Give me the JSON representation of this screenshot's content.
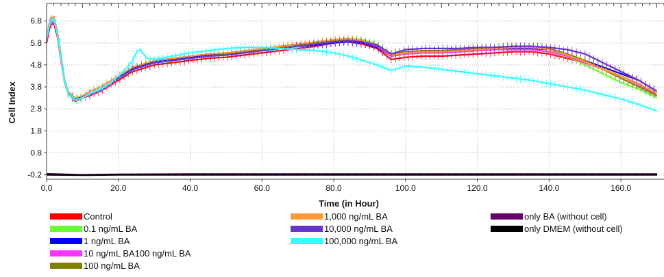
{
  "chart_data": {
    "type": "line",
    "xlabel": "Time  (in Hour)",
    "ylabel": "Cell Index",
    "xlim": [
      0,
      172
    ],
    "ylim": [
      -0.4,
      7.6
    ],
    "x_ticks": [
      0,
      20,
      40,
      60,
      80,
      100,
      120,
      140,
      160
    ],
    "x_tick_labels": [
      "0,0",
      "20.0",
      "40.0",
      "60.0",
      "80.0",
      "100.0",
      "120.0",
      "140.0",
      "160.0"
    ],
    "y_ticks": [
      -0.2,
      0.8,
      1.8,
      2.8,
      3.8,
      4.8,
      5.8,
      6.8
    ],
    "y_tick_labels": [
      "-0.2",
      "0.8",
      "1.8",
      "2.8",
      "3.8",
      "4.8",
      "5.8",
      "6.8"
    ],
    "grid": true,
    "error_bars": true,
    "legend_position": "bottom",
    "series": [
      {
        "name": "Control",
        "color": "#ff0000",
        "x": [
          0,
          1,
          2,
          3,
          4,
          5,
          6,
          8,
          10,
          12,
          15,
          18,
          20,
          24,
          26,
          28,
          30,
          35,
          40,
          45,
          50,
          55,
          60,
          65,
          70,
          75,
          80,
          84,
          88,
          92,
          96,
          100,
          105,
          110,
          115,
          120,
          125,
          130,
          135,
          140,
          145,
          150,
          155,
          160,
          165,
          170
        ],
        "y": [
          5.8,
          6.6,
          6.7,
          6.1,
          5.0,
          4.0,
          3.5,
          3.15,
          3.3,
          3.4,
          3.6,
          3.9,
          4.1,
          4.5,
          4.6,
          4.7,
          4.8,
          4.9,
          5.0,
          5.1,
          5.15,
          5.25,
          5.35,
          5.45,
          5.55,
          5.65,
          5.8,
          5.85,
          5.75,
          5.55,
          5.05,
          5.15,
          5.2,
          5.2,
          5.25,
          5.3,
          5.35,
          5.4,
          5.4,
          5.3,
          5.1,
          4.9,
          4.6,
          4.2,
          3.8,
          3.5
        ]
      },
      {
        "name": "0.1 ng/mL BA",
        "color": "#66ff33",
        "x": [
          0,
          1,
          2,
          3,
          4,
          5,
          6,
          8,
          10,
          12,
          15,
          18,
          20,
          24,
          26,
          28,
          30,
          35,
          40,
          45,
          50,
          55,
          60,
          65,
          70,
          75,
          80,
          84,
          88,
          92,
          96,
          100,
          105,
          110,
          115,
          120,
          125,
          130,
          135,
          140,
          145,
          150,
          155,
          160,
          165,
          170
        ],
        "y": [
          6.0,
          6.8,
          6.9,
          6.2,
          5.1,
          4.0,
          3.5,
          3.2,
          3.3,
          3.5,
          3.7,
          4.0,
          4.2,
          4.6,
          4.7,
          4.8,
          4.9,
          5.0,
          5.1,
          5.2,
          5.3,
          5.4,
          5.5,
          5.6,
          5.7,
          5.8,
          5.9,
          6.0,
          5.95,
          5.75,
          5.3,
          5.4,
          5.45,
          5.45,
          5.5,
          5.5,
          5.55,
          5.6,
          5.6,
          5.5,
          5.2,
          4.8,
          4.4,
          4.0,
          3.7,
          3.3
        ]
      },
      {
        "name": "1 ng/mL BA",
        "color": "#0000ff",
        "x": [
          0,
          1,
          2,
          3,
          4,
          5,
          6,
          8,
          10,
          12,
          15,
          18,
          20,
          24,
          26,
          28,
          30,
          35,
          40,
          45,
          50,
          55,
          60,
          65,
          70,
          75,
          80,
          84,
          88,
          92,
          96,
          100,
          105,
          110,
          115,
          120,
          125,
          130,
          135,
          140,
          145,
          150,
          155,
          160,
          165,
          170
        ],
        "y": [
          6.0,
          6.9,
          7.0,
          6.3,
          5.2,
          4.1,
          3.55,
          3.25,
          3.35,
          3.5,
          3.7,
          4.0,
          4.25,
          4.65,
          4.75,
          4.85,
          4.95,
          5.05,
          5.15,
          5.25,
          5.3,
          5.4,
          5.5,
          5.55,
          5.65,
          5.7,
          5.8,
          5.85,
          5.8,
          5.6,
          5.2,
          5.3,
          5.35,
          5.35,
          5.4,
          5.45,
          5.5,
          5.55,
          5.55,
          5.5,
          5.3,
          5.0,
          4.7,
          4.4,
          4.1,
          3.6
        ]
      },
      {
        "name": "10 ng/mL BA100 ng/mL BA",
        "color": "#ff33ff",
        "x": [
          0,
          1,
          2,
          3,
          4,
          5,
          6,
          8,
          10,
          12,
          15,
          18,
          20,
          24,
          26,
          28,
          30,
          35,
          40,
          45,
          50,
          55,
          60,
          65,
          70,
          75,
          80,
          84,
          88,
          92,
          96,
          100,
          105,
          110,
          115,
          120,
          125,
          130,
          135,
          140,
          145,
          150,
          155,
          160,
          165,
          170
        ],
        "y": [
          5.9,
          6.7,
          6.8,
          6.2,
          5.1,
          4.0,
          3.5,
          3.2,
          3.3,
          3.45,
          3.65,
          3.95,
          4.2,
          4.6,
          4.7,
          4.8,
          4.9,
          5.0,
          5.1,
          5.2,
          5.25,
          5.35,
          5.45,
          5.55,
          5.65,
          5.75,
          5.85,
          5.9,
          5.85,
          5.65,
          5.2,
          5.3,
          5.35,
          5.35,
          5.4,
          5.45,
          5.5,
          5.5,
          5.5,
          5.4,
          5.2,
          4.9,
          4.6,
          4.3,
          3.9,
          3.4
        ]
      },
      {
        "name": "100 ng/mL BA",
        "color": "#808000",
        "x": [
          0,
          1,
          2,
          3,
          4,
          5,
          6,
          8,
          10,
          12,
          15,
          18,
          20,
          24,
          26,
          28,
          30,
          35,
          40,
          45,
          50,
          55,
          60,
          65,
          70,
          75,
          80,
          84,
          88,
          92,
          96,
          100,
          105,
          110,
          115,
          120,
          125,
          130,
          135,
          140,
          145,
          150,
          155,
          160,
          165,
          170
        ],
        "y": [
          6.0,
          6.8,
          6.9,
          6.2,
          5.1,
          4.0,
          3.5,
          3.2,
          3.3,
          3.5,
          3.7,
          4.0,
          4.2,
          4.6,
          4.7,
          4.8,
          4.9,
          5.0,
          5.1,
          5.2,
          5.3,
          5.4,
          5.5,
          5.6,
          5.7,
          5.8,
          5.9,
          5.95,
          5.9,
          5.7,
          5.3,
          5.4,
          5.45,
          5.45,
          5.5,
          5.55,
          5.6,
          5.65,
          5.65,
          5.55,
          5.3,
          5.0,
          4.6,
          4.2,
          3.8,
          3.4
        ]
      },
      {
        "name": "1,000 ng/mL BA",
        "color": "#ff9933",
        "x": [
          0,
          1,
          2,
          3,
          4,
          5,
          6,
          8,
          10,
          12,
          15,
          18,
          20,
          24,
          26,
          28,
          30,
          35,
          40,
          45,
          50,
          55,
          60,
          65,
          70,
          75,
          80,
          84,
          88,
          92,
          96,
          100,
          105,
          110,
          115,
          120,
          125,
          130,
          135,
          140,
          145,
          150,
          155,
          160,
          165,
          170
        ],
        "y": [
          6.1,
          6.9,
          7.0,
          6.3,
          5.2,
          4.1,
          3.6,
          3.3,
          3.4,
          3.6,
          3.8,
          4.1,
          4.3,
          4.7,
          4.8,
          4.9,
          5.0,
          5.1,
          5.2,
          5.3,
          5.35,
          5.45,
          5.55,
          5.65,
          5.75,
          5.85,
          5.95,
          6.0,
          5.9,
          5.7,
          5.25,
          5.35,
          5.4,
          5.4,
          5.45,
          5.5,
          5.55,
          5.6,
          5.6,
          5.5,
          5.25,
          4.95,
          4.6,
          4.3,
          3.95,
          3.5
        ]
      },
      {
        "name": "10,000 ng/mL BA",
        "color": "#6633cc",
        "x": [
          0,
          1,
          2,
          3,
          4,
          5,
          6,
          8,
          10,
          12,
          15,
          18,
          20,
          24,
          26,
          28,
          30,
          35,
          40,
          45,
          50,
          55,
          60,
          65,
          70,
          75,
          80,
          84,
          88,
          92,
          96,
          100,
          105,
          110,
          115,
          120,
          125,
          130,
          135,
          140,
          145,
          150,
          155,
          160,
          165,
          170
        ],
        "y": [
          6.0,
          6.8,
          6.9,
          6.2,
          5.1,
          4.0,
          3.5,
          3.2,
          3.3,
          3.5,
          3.7,
          4.0,
          4.2,
          4.6,
          4.7,
          4.8,
          4.9,
          5.0,
          5.1,
          5.2,
          5.25,
          5.35,
          5.45,
          5.55,
          5.65,
          5.75,
          5.85,
          5.9,
          5.85,
          5.7,
          5.3,
          5.5,
          5.55,
          5.55,
          5.55,
          5.6,
          5.6,
          5.65,
          5.65,
          5.6,
          5.5,
          5.3,
          4.9,
          4.5,
          4.1,
          3.6
        ]
      },
      {
        "name": "100,000 ng/mL BA",
        "color": "#33ffff",
        "x": [
          0,
          1,
          2,
          3,
          4,
          5,
          6,
          8,
          10,
          12,
          15,
          18,
          20,
          22,
          24,
          25,
          26,
          27,
          28,
          30,
          35,
          40,
          45,
          50,
          55,
          60,
          65,
          70,
          75,
          80,
          84,
          88,
          92,
          96,
          100,
          105,
          110,
          115,
          120,
          125,
          130,
          135,
          140,
          145,
          150,
          155,
          160,
          165,
          170
        ],
        "y": [
          6.0,
          6.8,
          6.9,
          6.2,
          5.1,
          4.0,
          3.5,
          3.2,
          3.3,
          3.5,
          3.7,
          4.0,
          4.3,
          4.6,
          5.0,
          5.4,
          5.5,
          5.3,
          5.1,
          5.05,
          5.2,
          5.35,
          5.45,
          5.55,
          5.6,
          5.6,
          5.55,
          5.5,
          5.45,
          5.35,
          5.2,
          5.0,
          4.8,
          4.55,
          4.75,
          4.7,
          4.6,
          4.5,
          4.4,
          4.3,
          4.2,
          4.1,
          3.95,
          3.8,
          3.65,
          3.45,
          3.25,
          3.0,
          2.7
        ]
      },
      {
        "name": "only BA (without cell)",
        "color": "#660066",
        "x": [
          0,
          10,
          20,
          40,
          60,
          80,
          100,
          120,
          140,
          160,
          170
        ],
        "y": [
          -0.15,
          -0.2,
          -0.18,
          -0.16,
          -0.16,
          -0.16,
          -0.16,
          -0.16,
          -0.16,
          -0.16,
          -0.16
        ]
      },
      {
        "name": "only DMEM (without cell)",
        "color": "#000000",
        "x": [
          0,
          10,
          20,
          40,
          60,
          80,
          100,
          120,
          140,
          160,
          170
        ],
        "y": [
          -0.2,
          -0.22,
          -0.2,
          -0.2,
          -0.2,
          -0.2,
          -0.2,
          -0.2,
          -0.2,
          -0.2,
          -0.2
        ]
      }
    ]
  }
}
